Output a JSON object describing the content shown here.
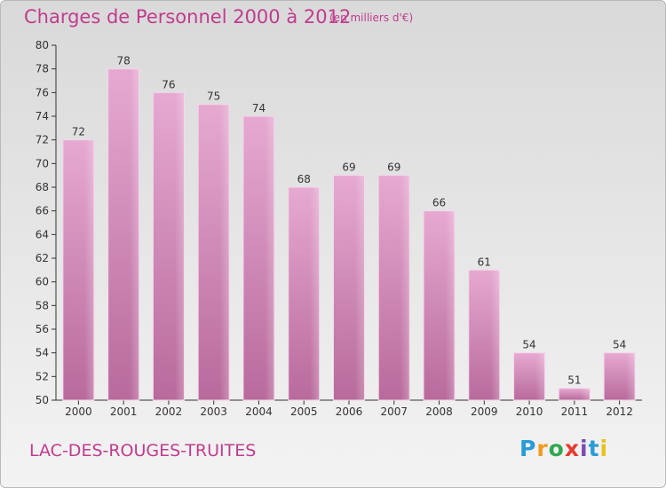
{
  "header": {
    "title": "Charges de Personnel 2000 à 2012",
    "unit": "(en milliers d'€)"
  },
  "footer": {
    "commune": "LAC-DES-ROUGES-TRUITES",
    "logo_letters": [
      "P",
      "r",
      "o",
      "x",
      "i",
      "t",
      "i"
    ],
    "logo_colors": [
      "#2a9bd6",
      "#f39a1c",
      "#2fa84f",
      "#e63a2e",
      "#7c4bb0",
      "#2a9bd6",
      "#e8c21a"
    ]
  },
  "colors": {
    "text": "#c03c8e",
    "bar_top": "#e6a9d1",
    "bar_bottom": "#b86a9c",
    "axis": "#333333",
    "grid": "#999999"
  },
  "chart_data": {
    "type": "bar",
    "categories": [
      "2000",
      "2001",
      "2002",
      "2003",
      "2004",
      "2005",
      "2006",
      "2007",
      "2008",
      "2009",
      "2010",
      "2011",
      "2012"
    ],
    "values": [
      72,
      78,
      76,
      75,
      74,
      68,
      69,
      69,
      66,
      61,
      54,
      51,
      54
    ],
    "title": "Charges de Personnel 2000 à 2012",
    "ylim": [
      50,
      80
    ],
    "yticks": [
      50,
      52,
      54,
      56,
      58,
      60,
      62,
      64,
      66,
      68,
      70,
      72,
      74,
      76,
      78,
      80
    ],
    "grid": false,
    "legend": "none"
  }
}
